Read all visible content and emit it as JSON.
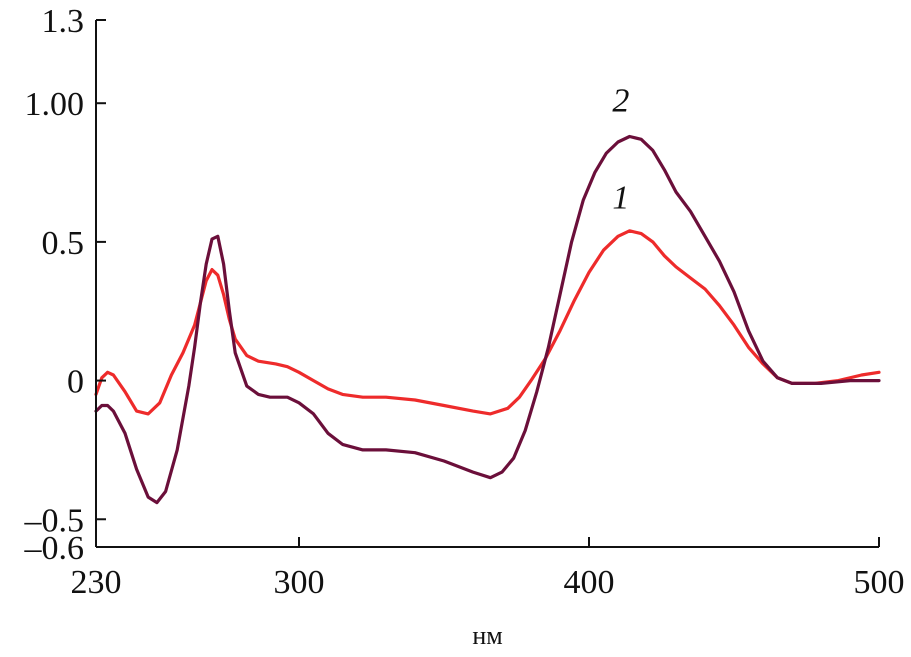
{
  "chart_data": {
    "type": "line",
    "title": "",
    "xlabel": "нм",
    "ylabel": "",
    "xlim": [
      230,
      500
    ],
    "ylim": [
      -0.6,
      1.3
    ],
    "grid": false,
    "legend": "none",
    "x_ticks": [
      {
        "value": 230,
        "label": "230"
      },
      {
        "value": 300,
        "label": "300"
      },
      {
        "value": 400,
        "label": "400"
      },
      {
        "value": 500,
        "label": "500"
      }
    ],
    "y_ticks": [
      {
        "value": 1.3,
        "label": "1.3"
      },
      {
        "value": 1.0,
        "label": "1.00"
      },
      {
        "value": 0.5,
        "label": "0.5"
      },
      {
        "value": 0,
        "label": "0"
      },
      {
        "value": -0.5,
        "label": "–0.5"
      },
      {
        "value": -0.6,
        "label": "–0.6"
      }
    ],
    "series": [
      {
        "name": "1",
        "color": "#ee2b2b",
        "label_at": [
          411,
          0.62
        ],
        "points": [
          [
            230,
            -0.05
          ],
          [
            232,
            0.01
          ],
          [
            234,
            0.03
          ],
          [
            236,
            0.02
          ],
          [
            240,
            -0.04
          ],
          [
            244,
            -0.11
          ],
          [
            248,
            -0.12
          ],
          [
            252,
            -0.08
          ],
          [
            256,
            0.02
          ],
          [
            260,
            0.1
          ],
          [
            264,
            0.2
          ],
          [
            266,
            0.28
          ],
          [
            268,
            0.36
          ],
          [
            270,
            0.4
          ],
          [
            272,
            0.38
          ],
          [
            274,
            0.31
          ],
          [
            276,
            0.22
          ],
          [
            278,
            0.15
          ],
          [
            282,
            0.09
          ],
          [
            286,
            0.07
          ],
          [
            292,
            0.06
          ],
          [
            296,
            0.05
          ],
          [
            300,
            0.03
          ],
          [
            305,
            0.0
          ],
          [
            310,
            -0.03
          ],
          [
            315,
            -0.05
          ],
          [
            322,
            -0.06
          ],
          [
            330,
            -0.06
          ],
          [
            340,
            -0.07
          ],
          [
            350,
            -0.09
          ],
          [
            360,
            -0.11
          ],
          [
            366,
            -0.12
          ],
          [
            372,
            -0.1
          ],
          [
            376,
            -0.06
          ],
          [
            380,
            0.0
          ],
          [
            385,
            0.08
          ],
          [
            390,
            0.18
          ],
          [
            395,
            0.29
          ],
          [
            400,
            0.39
          ],
          [
            405,
            0.47
          ],
          [
            410,
            0.52
          ],
          [
            414,
            0.54
          ],
          [
            418,
            0.53
          ],
          [
            422,
            0.5
          ],
          [
            426,
            0.45
          ],
          [
            430,
            0.41
          ],
          [
            435,
            0.37
          ],
          [
            440,
            0.33
          ],
          [
            445,
            0.27
          ],
          [
            450,
            0.2
          ],
          [
            455,
            0.12
          ],
          [
            460,
            0.06
          ],
          [
            465,
            0.01
          ],
          [
            470,
            -0.01
          ],
          [
            478,
            -0.01
          ],
          [
            486,
            0.0
          ],
          [
            494,
            0.02
          ],
          [
            500,
            0.03
          ]
        ]
      },
      {
        "name": "2",
        "color": "#6b0f3a",
        "label_at": [
          411,
          0.97
        ],
        "points": [
          [
            230,
            -0.11
          ],
          [
            232,
            -0.09
          ],
          [
            234,
            -0.09
          ],
          [
            236,
            -0.11
          ],
          [
            240,
            -0.19
          ],
          [
            244,
            -0.32
          ],
          [
            248,
            -0.42
          ],
          [
            251,
            -0.44
          ],
          [
            254,
            -0.4
          ],
          [
            258,
            -0.25
          ],
          [
            262,
            -0.02
          ],
          [
            264,
            0.12
          ],
          [
            266,
            0.28
          ],
          [
            268,
            0.42
          ],
          [
            270,
            0.51
          ],
          [
            272,
            0.52
          ],
          [
            274,
            0.42
          ],
          [
            276,
            0.25
          ],
          [
            278,
            0.1
          ],
          [
            282,
            -0.02
          ],
          [
            286,
            -0.05
          ],
          [
            290,
            -0.06
          ],
          [
            296,
            -0.06
          ],
          [
            300,
            -0.08
          ],
          [
            305,
            -0.12
          ],
          [
            310,
            -0.19
          ],
          [
            315,
            -0.23
          ],
          [
            322,
            -0.25
          ],
          [
            330,
            -0.25
          ],
          [
            340,
            -0.26
          ],
          [
            350,
            -0.29
          ],
          [
            360,
            -0.33
          ],
          [
            366,
            -0.35
          ],
          [
            370,
            -0.33
          ],
          [
            374,
            -0.28
          ],
          [
            378,
            -0.18
          ],
          [
            382,
            -0.04
          ],
          [
            386,
            0.12
          ],
          [
            390,
            0.31
          ],
          [
            394,
            0.5
          ],
          [
            398,
            0.65
          ],
          [
            402,
            0.75
          ],
          [
            406,
            0.82
          ],
          [
            410,
            0.86
          ],
          [
            414,
            0.88
          ],
          [
            418,
            0.87
          ],
          [
            422,
            0.83
          ],
          [
            426,
            0.76
          ],
          [
            430,
            0.68
          ],
          [
            435,
            0.61
          ],
          [
            440,
            0.52
          ],
          [
            445,
            0.43
          ],
          [
            450,
            0.32
          ],
          [
            455,
            0.18
          ],
          [
            460,
            0.07
          ],
          [
            465,
            0.01
          ],
          [
            470,
            -0.01
          ],
          [
            480,
            -0.01
          ],
          [
            490,
            0.0
          ],
          [
            500,
            0.0
          ]
        ]
      }
    ]
  }
}
